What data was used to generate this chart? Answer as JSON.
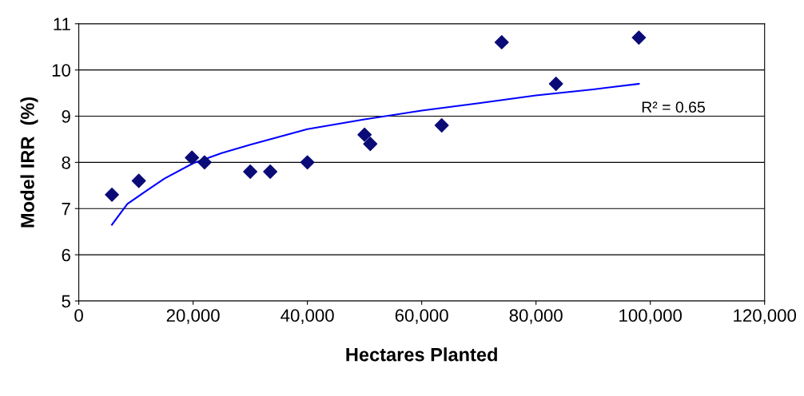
{
  "chart_data": {
    "type": "scatter",
    "xlabel": "Hectares Planted",
    "ylabel": "Model IRR  (%)",
    "series": [
      {
        "color": "#0b0b78",
        "marker": "diamond",
        "x": [
          5800,
          10500,
          19800,
          22000,
          30000,
          33500,
          40000,
          50000,
          51000,
          63500,
          74000,
          83500,
          98000
        ],
        "values": [
          7.3,
          7.6,
          8.1,
          8.0,
          7.8,
          7.8,
          8.0,
          8.6,
          8.4,
          8.8,
          10.6,
          9.7,
          10.7
        ]
      },
      {
        "type": "line",
        "color": "#0000ff",
        "marker": "none",
        "x": [
          5800,
          8500,
          12000,
          15000,
          20000,
          25000,
          30000,
          35000,
          40000,
          50000,
          60000,
          70000,
          80000,
          90000,
          98000
        ],
        "values": [
          6.65,
          7.1,
          7.4,
          7.65,
          7.98,
          8.2,
          8.38,
          8.55,
          8.72,
          8.93,
          9.12,
          9.28,
          9.45,
          9.58,
          9.7
        ]
      }
    ],
    "annotations": [
      "R² = 0.65"
    ],
    "xlim": [
      0,
      120000
    ],
    "ylim": [
      5,
      11
    ],
    "xticks": [
      0,
      {
        "value": 20000,
        "label": "20,000"
      },
      {
        "value": 40000,
        "label": "40,000"
      },
      {
        "value": 60000,
        "label": "60,000"
      },
      {
        "value": 80000,
        "label": "80,000"
      },
      {
        "value": 100000,
        "label": "100,000"
      },
      {
        "value": 120000,
        "label": "120,000"
      }
    ],
    "yticks": [
      5,
      6,
      7,
      8,
      9,
      10,
      11
    ],
    "grid": "y"
  }
}
